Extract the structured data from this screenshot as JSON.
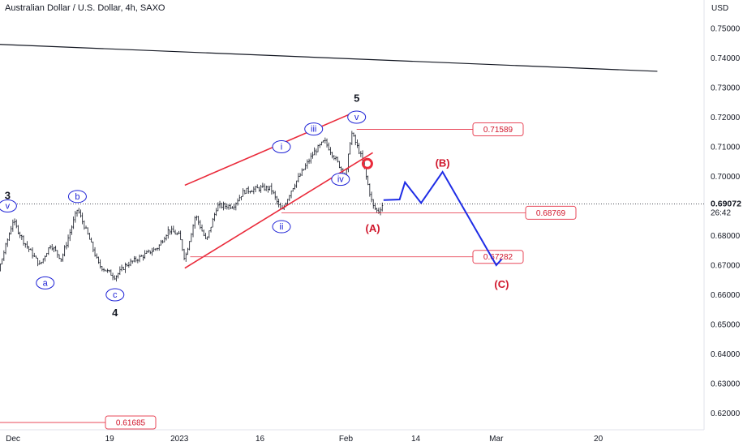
{
  "title": "Australian Dollar / U.S. Dollar, 4h, SAXO",
  "currency": "USD",
  "chart_data": {
    "type": "candlestick",
    "y_ticks": [
      "0.75000",
      "0.74000",
      "0.73000",
      "0.72000",
      "0.71000",
      "0.70000",
      "0.69000",
      "0.68000",
      "0.67000",
      "0.66000",
      "0.65000",
      "0.64000",
      "0.63000",
      "0.62000"
    ],
    "x_ticks": [
      {
        "label": "Dec",
        "date": "2022-12-01"
      },
      {
        "label": "19",
        "date": "2022-12-19"
      },
      {
        "label": "2023",
        "date": "2023-01-01"
      },
      {
        "label": "16",
        "date": "2023-01-16"
      },
      {
        "label": "Feb",
        "date": "2023-02-01"
      },
      {
        "label": "14",
        "date": "2023-02-14"
      },
      {
        "label": "Mar",
        "date": "2023-03-01"
      },
      {
        "label": "20",
        "date": "2023-03-20"
      }
    ],
    "last_price": "0.69072",
    "countdown": "26:42",
    "levels": [
      {
        "label": "0.71589",
        "value": 0.71589
      },
      {
        "label": "0.68769",
        "value": 0.68769
      },
      {
        "label": "0.67282",
        "value": 0.67282
      },
      {
        "label": "0.61685",
        "value": 0.61685
      }
    ],
    "price_path": [
      {
        "date": "2022-11-23",
        "price": 0.67
      },
      {
        "date": "2022-11-26",
        "price": 0.678
      },
      {
        "date": "2022-11-28",
        "price": 0.666
      },
      {
        "date": "2022-12-01",
        "price": 0.685
      },
      {
        "date": "2022-12-03",
        "price": 0.678
      },
      {
        "date": "2022-12-06",
        "price": 0.67
      },
      {
        "date": "2022-12-08",
        "price": 0.677
      },
      {
        "date": "2022-12-10",
        "price": 0.672
      },
      {
        "date": "2022-12-13",
        "price": 0.689
      },
      {
        "date": "2022-12-15",
        "price": 0.68
      },
      {
        "date": "2022-12-17",
        "price": 0.67
      },
      {
        "date": "2022-12-20",
        "price": 0.666
      },
      {
        "date": "2022-12-22",
        "price": 0.67
      },
      {
        "date": "2022-12-25",
        "price": 0.673
      },
      {
        "date": "2022-12-28",
        "price": 0.676
      },
      {
        "date": "2022-12-30",
        "price": 0.682
      },
      {
        "date": "2023-01-01",
        "price": 0.68
      },
      {
        "date": "2023-01-02",
        "price": 0.672
      },
      {
        "date": "2023-01-04",
        "price": 0.687
      },
      {
        "date": "2023-01-06",
        "price": 0.678
      },
      {
        "date": "2023-01-08",
        "price": 0.69
      },
      {
        "date": "2023-01-11",
        "price": 0.69
      },
      {
        "date": "2023-01-13",
        "price": 0.695
      },
      {
        "date": "2023-01-16",
        "price": 0.696
      },
      {
        "date": "2023-01-18",
        "price": 0.696
      },
      {
        "date": "2023-01-20",
        "price": 0.688
      },
      {
        "date": "2023-01-22",
        "price": 0.696
      },
      {
        "date": "2023-01-24",
        "price": 0.702
      },
      {
        "date": "2023-01-26",
        "price": 0.708
      },
      {
        "date": "2023-01-28",
        "price": 0.712
      },
      {
        "date": "2023-01-30",
        "price": 0.706
      },
      {
        "date": "2023-02-01",
        "price": 0.7
      },
      {
        "date": "2023-02-02",
        "price": 0.715
      },
      {
        "date": "2023-02-04",
        "price": 0.706
      },
      {
        "date": "2023-02-06",
        "price": 0.69
      },
      {
        "date": "2023-02-07",
        "price": 0.688
      },
      {
        "date": "2023-02-08",
        "price": 0.691
      }
    ],
    "projection": [
      {
        "date": "2023-02-08",
        "price": 0.692
      },
      {
        "date": "2023-02-11",
        "price": 0.6922
      },
      {
        "date": "2023-02-12",
        "price": 0.698
      },
      {
        "date": "2023-02-15",
        "price": 0.691
      },
      {
        "date": "2023-02-19",
        "price": 0.7015
      },
      {
        "date": "2023-03-01",
        "price": 0.67
      },
      {
        "date": "2023-03-02",
        "price": 0.672
      }
    ],
    "channel": [
      {
        "start": {
          "date": "2023-01-02",
          "price": 0.697
        },
        "end": {
          "date": "2023-02-03",
          "price": 0.722
        }
      },
      {
        "start": {
          "date": "2023-01-02",
          "price": 0.669
        },
        "end": {
          "date": "2023-02-06",
          "price": 0.708
        }
      }
    ],
    "trendline": {
      "start": {
        "date": "2022-11-23",
        "price": 0.745
      },
      "end": {
        "date": "2023-03-31",
        "price": 0.7355
      }
    },
    "wave_labels": [
      {
        "text": "3",
        "circled": false,
        "color": "#131722",
        "date": "2022-11-30",
        "price": 0.6935
      },
      {
        "text": "v",
        "circled": true,
        "color": "#1e22d6",
        "date": "2022-11-30",
        "price": 0.69
      },
      {
        "text": "b",
        "circled": true,
        "color": "#1e22d6",
        "date": "2022-12-13",
        "price": 0.6932
      },
      {
        "text": "a",
        "circled": true,
        "color": "#1e22d6",
        "date": "2022-12-07",
        "price": 0.664
      },
      {
        "text": "iv",
        "circled": true,
        "color": "#1e22d6",
        "date": "2022-11-24",
        "price": 0.66
      },
      {
        "text": "c",
        "circled": true,
        "color": "#1e22d6",
        "date": "2022-12-20",
        "price": 0.66
      },
      {
        "text": "4",
        "circled": false,
        "color": "#131722",
        "date": "2022-12-20",
        "price": 0.654
      },
      {
        "text": "i",
        "circled": true,
        "color": "#1e22d6",
        "date": "2023-01-20",
        "price": 0.71
      },
      {
        "text": "ii",
        "circled": true,
        "color": "#1e22d6",
        "date": "2023-01-20",
        "price": 0.683
      },
      {
        "text": "iii",
        "circled": true,
        "color": "#1e22d6",
        "date": "2023-01-26",
        "price": 0.716
      },
      {
        "text": "iv",
        "circled": true,
        "color": "#1e22d6",
        "date": "2023-01-31",
        "price": 0.699
      },
      {
        "text": "v",
        "circled": true,
        "color": "#1e22d6",
        "date": "2023-02-03",
        "price": 0.72
      },
      {
        "text": "5",
        "circled": false,
        "color": "#131722",
        "date": "2023-02-03",
        "price": 0.7265
      },
      {
        "text": "(A)",
        "circled": false,
        "color": "#d0162b",
        "date": "2023-02-06",
        "price": 0.6825
      },
      {
        "text": "(B)",
        "circled": false,
        "color": "#d0162b",
        "date": "2023-02-19",
        "price": 0.7045
      },
      {
        "text": "(C)",
        "circled": false,
        "color": "#d0162b",
        "date": "2023-03-02",
        "price": 0.6635
      }
    ],
    "marker": {
      "date": "2023-02-05",
      "price": 0.7043
    },
    "colors": {
      "candles": "#131722",
      "channel": "#ea2a3a",
      "projection": "#1f2de6",
      "levels": "#e8485a",
      "wave_labels": "#1e22d6",
      "labels_red": "#d0162b",
      "trendline": "#131722"
    }
  }
}
